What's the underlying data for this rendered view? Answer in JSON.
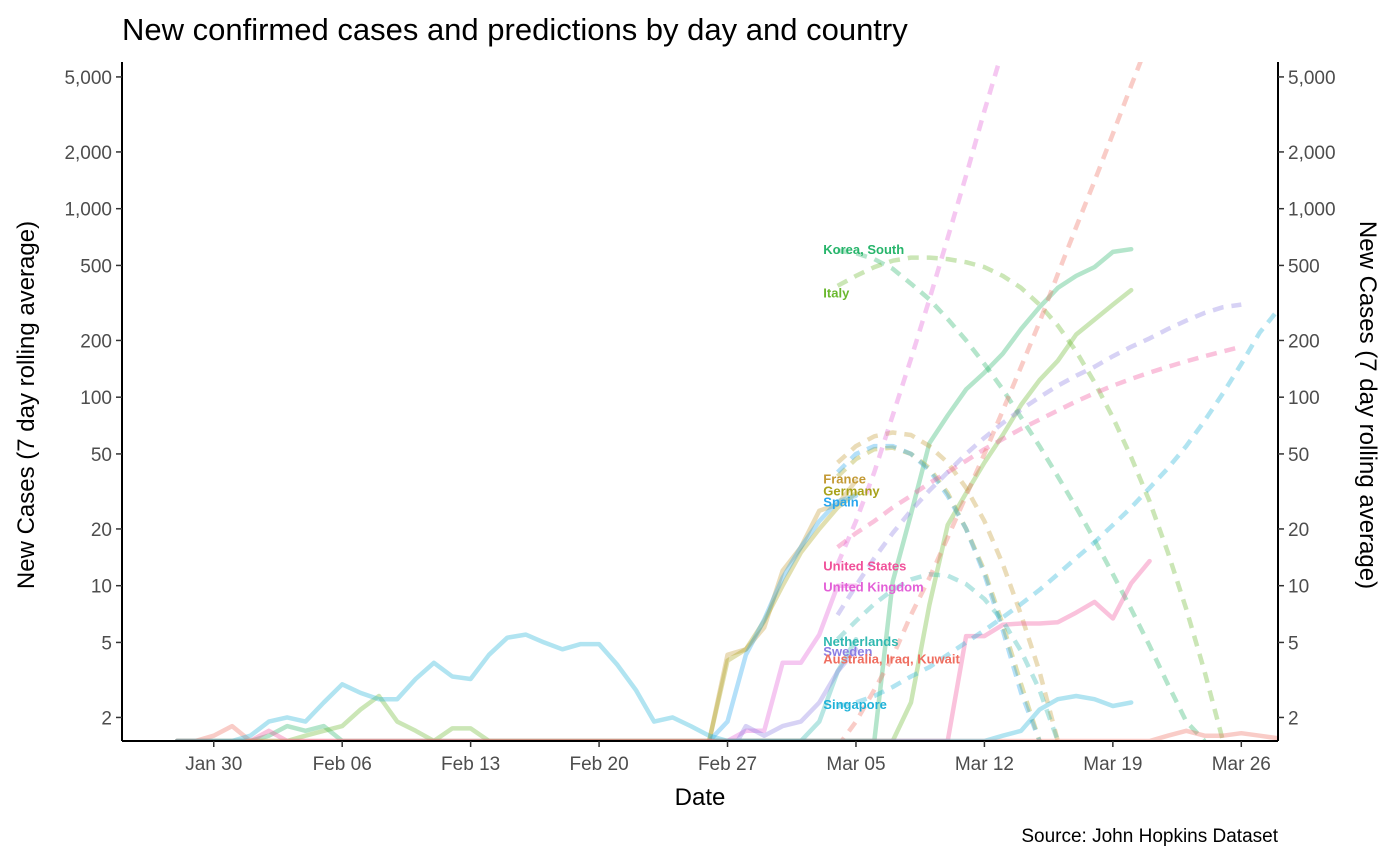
{
  "chart_data": {
    "type": "line",
    "title": "New confirmed cases and predictions by day and country",
    "xlabel": "Date",
    "ylabel": "New Cases (7 day rolling average)",
    "ylabel_right": "New Cases (7 day rolling average)",
    "caption": "Source: John Hopkins Dataset",
    "y_scale": "log10",
    "ylim": [
      1.5,
      6000
    ],
    "y_ticks": [
      {
        "value": 2,
        "label": "2"
      },
      {
        "value": 5,
        "label": "5"
      },
      {
        "value": 10,
        "label": "10"
      },
      {
        "value": 20,
        "label": "20"
      },
      {
        "value": 50,
        "label": "50"
      },
      {
        "value": 100,
        "label": "100"
      },
      {
        "value": 200,
        "label": "200"
      },
      {
        "value": 500,
        "label": "500"
      },
      {
        "value": 1000,
        "label": "1,000"
      },
      {
        "value": 2000,
        "label": "2,000"
      },
      {
        "value": 5000,
        "label": "5,000"
      }
    ],
    "xlim": [
      "2020-01-25",
      "2020-03-28"
    ],
    "x_ticks": [
      {
        "value": "2020-01-30",
        "label": "Jan 30"
      },
      {
        "value": "2020-02-06",
        "label": "Feb 06"
      },
      {
        "value": "2020-02-13",
        "label": "Feb 13"
      },
      {
        "value": "2020-02-20",
        "label": "Feb 20"
      },
      {
        "value": "2020-02-27",
        "label": "Feb 27"
      },
      {
        "value": "2020-03-05",
        "label": "Mar 05"
      },
      {
        "value": "2020-03-12",
        "label": "Mar 12"
      },
      {
        "value": "2020-03-19",
        "label": "Mar 19"
      },
      {
        "value": "2020-03-26",
        "label": "Mar 26"
      }
    ],
    "grid": false,
    "legend": "none (direct labels at line ends)",
    "series": [
      {
        "name": "Korea, South",
        "color": "#27b56b",
        "actual": {
          "start": "2020-01-28",
          "values": [
            1.5,
            1.5,
            1.5,
            1.5,
            1.5,
            1.6,
            1.8,
            1.7,
            1.8,
            1.5,
            1.5,
            1.5,
            1.5,
            1.5,
            1.5,
            1.5,
            1.5,
            1.5,
            1.5,
            1.5,
            1.5,
            1.5,
            1.5,
            1.5,
            1.5,
            1.5,
            1.5,
            1.5,
            1.5,
            1.5,
            1.5,
            1.5,
            1.5,
            1.5,
            1.5,
            1.5,
            1.5,
            1.5,
            1.5,
            10.5,
            24,
            57,
            80,
            110,
            135,
            170,
            230,
            300,
            380,
            440,
            490,
            590,
            610
          ]
        },
        "prediction": {
          "start": "2020-03-04",
          "values": [
            600,
            580,
            540,
            480,
            400,
            330,
            260,
            200,
            150,
            110,
            78,
            55,
            38,
            26,
            17.5,
            11.5,
            7.5,
            4.8,
            3,
            1.9,
            1.5
          ]
        }
      },
      {
        "name": "Italy",
        "color": "#6ab82e",
        "actual": {
          "start": "2020-01-28",
          "values": [
            1.5,
            1.5,
            1.5,
            1.5,
            1.5,
            1.5,
            1.5,
            1.6,
            1.7,
            1.8,
            2.2,
            2.6,
            1.9,
            1.7,
            1.5,
            1.75,
            1.75,
            1.5,
            1.5,
            1.5,
            1.5,
            1.5,
            1.5,
            1.5,
            1.5,
            1.5,
            1.5,
            1.5,
            1.5,
            1.5,
            1.5,
            1.5,
            1.5,
            1.5,
            1.5,
            1.5,
            1.5,
            1.5,
            1.5,
            1.5,
            2.4,
            7.9,
            21,
            31,
            45,
            63,
            91,
            123,
            156,
            215,
            258,
            310,
            370
          ]
        },
        "prediction": {
          "start": "2020-03-04",
          "values": [
            390,
            440,
            490,
            530,
            550,
            550,
            540,
            520,
            490,
            440,
            380,
            310,
            240,
            175,
            120,
            78,
            48,
            28,
            15,
            7.5,
            3.5,
            1.5
          ]
        }
      },
      {
        "name": "France",
        "color": "#c39a35",
        "actual": {
          "start": "2020-02-26",
          "values": [
            1.5,
            4.3,
            4.6,
            6,
            12,
            16,
            25,
            27,
            36
          ]
        },
        "prediction": {
          "start": "2020-03-04",
          "values": [
            45,
            55,
            62,
            65,
            63,
            55,
            45,
            33,
            22,
            13,
            7,
            3.5,
            1.5
          ]
        }
      },
      {
        "name": "Germany",
        "color": "#a8a21b",
        "actual": {
          "start": "2020-02-26",
          "values": [
            1.5,
            4,
            4.6,
            6.5,
            10,
            15,
            20,
            26,
            31
          ]
        },
        "prediction": {
          "start": "2020-03-04",
          "values": [
            38,
            47,
            53,
            54,
            50,
            42,
            31,
            20,
            12,
            6.2,
            3,
            1.5
          ]
        }
      },
      {
        "name": "Spain",
        "color": "#29a6ee",
        "actual": {
          "start": "2020-02-26",
          "values": [
            1.5,
            1.9,
            4.3,
            6.6,
            11,
            16,
            22,
            28,
            30
          ]
        },
        "prediction": {
          "start": "2020-03-04",
          "values": [
            40,
            50,
            55,
            55,
            50,
            41,
            30,
            20,
            11.5,
            5.8,
            2.7,
            1.5
          ]
        }
      },
      {
        "name": "United States",
        "color": "#f0509a",
        "actual": {
          "start": "2020-01-28",
          "values": [
            1.5,
            1.5,
            1.5,
            1.5,
            1.5,
            1.7,
            1.5,
            1.5,
            1.5,
            1.5,
            1.5,
            1.5,
            1.5,
            1.5,
            1.5,
            1.5,
            1.5,
            1.5,
            1.5,
            1.5,
            1.5,
            1.5,
            1.5,
            1.5,
            1.5,
            1.5,
            1.5,
            1.5,
            1.5,
            1.5,
            1.5,
            1.5,
            1.5,
            1.5,
            1.5,
            1.5,
            1.5,
            1.5,
            1.5,
            1.5,
            1.5,
            1.5,
            1.5,
            5.4,
            5.4,
            6.2,
            6.3,
            6.3,
            6.4,
            7.2,
            8.2,
            6.7,
            10.3,
            13.5
          ]
        },
        "prediction": {
          "start": "2020-03-04",
          "values": [
            16,
            19,
            22,
            26,
            30,
            35,
            40,
            46,
            53,
            60,
            68,
            76,
            85,
            95,
            105,
            115,
            125,
            135,
            145,
            155,
            165,
            175,
            185
          ]
        }
      },
      {
        "name": "United Kingdom",
        "color": "#e35fd7",
        "actual": {
          "start": "2020-02-26",
          "values": [
            1.2,
            1.5,
            1.7,
            1.7,
            3.9,
            3.9,
            5.5,
            10,
            10
          ]
        },
        "prediction": {
          "start": "2020-03-04",
          "values": [
            13,
            22,
            40,
            80,
            160,
            330,
            700,
            1500,
            3300,
            7000
          ]
        }
      },
      {
        "name": "Netherlands",
        "color": "#30b8b0",
        "actual": {
          "start": "2020-02-27",
          "values": [
            1.5,
            1.5,
            1.5,
            1.5,
            1.5,
            1.9,
            3.5,
            5.2
          ]
        },
        "prediction": {
          "start": "2020-03-04",
          "values": [
            5.2,
            6.5,
            8,
            9.5,
            10.8,
            11.5,
            11.3,
            10.2,
            8.5,
            6.5,
            4.5,
            2.8,
            1.5
          ]
        }
      },
      {
        "name": "Sweden",
        "color": "#8b7ee3",
        "actual": {
          "start": "2020-02-27",
          "values": [
            1.2,
            1.8,
            1.6,
            1.8,
            1.9,
            2.4,
            3.5,
            4.6
          ]
        },
        "prediction": {
          "start": "2020-03-04",
          "values": [
            7,
            10,
            14,
            19,
            25,
            32,
            40,
            50,
            61,
            73,
            86,
            100,
            115,
            130,
            145,
            165,
            185,
            205,
            230,
            255,
            280,
            300,
            310
          ]
        }
      },
      {
        "name": "Australia, Iraq, Kuwait",
        "color": "#ef6d5f",
        "actual": {
          "start": "2020-01-28",
          "values": [
            1.5,
            1.5,
            1.6,
            1.8,
            1.5,
            1.5,
            1.5,
            1.5,
            1.5,
            1.5,
            1.5,
            1.5,
            1.5,
            1.5,
            1.5,
            1.5,
            1.5,
            1.5,
            1.5,
            1.5,
            1.5,
            1.5,
            1.5,
            1.5,
            1.5,
            1.5,
            1.5,
            1.5,
            1.5,
            1.5,
            1.5,
            1.5,
            1.5,
            1.5,
            1.5,
            1.5,
            1.5,
            1.5,
            1.5,
            1.5,
            1.5,
            1.5,
            1.5,
            1.5,
            1.5,
            1.5,
            1.5,
            1.5,
            1.5,
            1.5,
            1.5,
            1.5,
            1.5,
            1.5,
            1.6,
            1.7,
            1.6,
            1.6,
            1.65,
            1.6,
            1.55,
            1.6,
            1.7,
            1.8,
            1.9,
            2.2,
            3.2,
            4.2
          ]
        },
        "prediction": {
          "start": "2020-03-04",
          "values": [
            1.4,
            1.9,
            2.8,
            4.2,
            7,
            11,
            18,
            30,
            50,
            85,
            145,
            250,
            450,
            800,
            1400,
            2500,
            4500,
            8000
          ]
        }
      },
      {
        "name": "Singapore",
        "color": "#1fb2d8",
        "actual": {
          "start": "2020-01-28",
          "values": [
            1.5,
            1.5,
            1.5,
            1.5,
            1.6,
            1.9,
            2,
            1.9,
            2.4,
            3,
            2.7,
            2.5,
            2.5,
            3.2,
            3.9,
            3.3,
            3.2,
            4.3,
            5.3,
            5.5,
            5,
            4.6,
            4.9,
            4.9,
            3.8,
            2.8,
            1.9,
            2,
            1.8,
            1.6,
            1.5,
            1.5,
            1.5,
            1.5,
            1.5,
            1.5,
            1.5,
            1.5,
            1.5,
            1.5,
            1.5,
            1.5,
            1.5,
            1.5,
            1.5,
            1.6,
            1.7,
            2.2,
            2.5,
            2.6,
            2.5,
            2.3,
            2.4
          ]
        },
        "prediction": {
          "start": "2020-03-04",
          "values": [
            2.3,
            2.4,
            2.6,
            2.9,
            3.3,
            3.7,
            4.3,
            5,
            5.8,
            6.8,
            8,
            9.5,
            11.5,
            14,
            17,
            21,
            26,
            33,
            42,
            55,
            75,
            105,
            150,
            220,
            290
          ]
        }
      }
    ],
    "labels": [
      {
        "text": "Korea, South",
        "series": 0,
        "y": 610
      },
      {
        "text": "Italy",
        "series": 1,
        "y": 360
      },
      {
        "text": "France",
        "series": 2,
        "y": 37
      },
      {
        "text": "Germany",
        "series": 3,
        "y": 32
      },
      {
        "text": "Spain",
        "series": 4,
        "y": 28
      },
      {
        "text": "United States",
        "series": 5,
        "y": 12.8
      },
      {
        "text": "United Kingdom",
        "series": 6,
        "y": 9.9
      },
      {
        "text": "Netherlands",
        "series": 7,
        "y": 5.1
      },
      {
        "text": "Sweden",
        "series": 8,
        "y": 4.5
      },
      {
        "text": "Australia, Iraq, Kuwait",
        "series": 9,
        "y": 4.1
      },
      {
        "text": "Singapore",
        "series": 10,
        "y": 2.35
      }
    ]
  }
}
